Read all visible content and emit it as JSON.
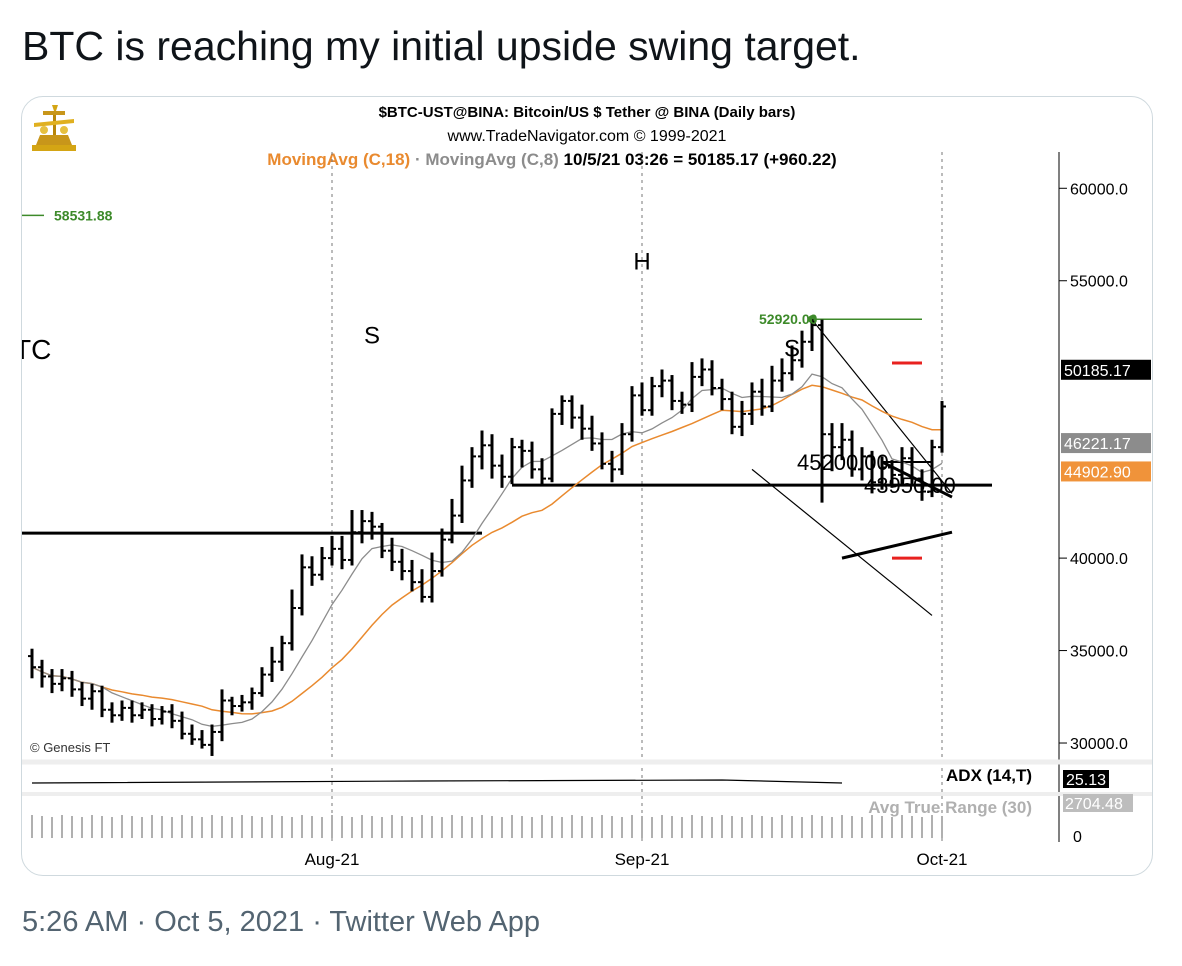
{
  "tweet": {
    "text": "BTC is reaching my initial upside swing target.",
    "time": "5:26 AM",
    "date": "Oct 5, 2021",
    "source": "Twitter Web App",
    "separator": "·"
  },
  "colors": {
    "ma18": "#e98a2f",
    "ma8": "#8c8c8c",
    "target_green": "#3d8a2a",
    "red_marker": "#e8211f",
    "price_box": "#000000",
    "ma18_box": "#f0933a",
    "ma8_box": "#8c8c8c"
  },
  "chart_data": {
    "type": "bar",
    "subtype": "ohlc",
    "title": "$BTC-UST@BINA:  Bitcoin/US $ Tether @ BINA  (Daily bars)",
    "subtitle": "www.TradeNavigator.com © 1999-2021",
    "legend": {
      "ma18": "MovingAvg (C,18)",
      "ma8": "MovingAvg (C,8)",
      "quote": "10/5/21 03:26 = 50185.17 (+960.22)"
    },
    "copyright": "© Genesis FT",
    "partial_label": "TC",
    "x_ticks": [
      "Aug-21",
      "Sep-21",
      "Oct-21"
    ],
    "x_tick_dates": [
      "2021-08-01",
      "2021-09-01",
      "2021-10-01"
    ],
    "y_ticks": [
      "60000.0",
      "55000.0",
      "40000.0",
      "35000.0",
      "30000.0"
    ],
    "y_tick_values": [
      60000,
      55000,
      40000,
      35000,
      30000
    ],
    "ylim": [
      28000,
      61800
    ],
    "xlim": [
      "2021-07-01",
      "2021-10-12"
    ],
    "price_labels": {
      "last": {
        "text": "50185.17",
        "value": 50185.17
      },
      "ma8": {
        "text": "46221.17",
        "value": 46221.17
      },
      "ma18": {
        "text": "44902.90",
        "value": 44902.9
      }
    },
    "annotations": [
      {
        "text": "58531.88",
        "value": 58531.88
      },
      {
        "text": "52920.00",
        "value": 52920.0
      },
      {
        "text": "45200.00",
        "value": 45200.0
      },
      {
        "text": "43950.00",
        "value": 43950.0
      },
      {
        "text": "H",
        "date": "2021-09-01",
        "value": 55600
      },
      {
        "text": "S",
        "date": "2021-08-05",
        "value": 51600
      },
      {
        "text": "S",
        "date": "2021-09-16",
        "value": 50900
      }
    ],
    "levels": [
      41350,
      43950,
      45200,
      52920,
      40000,
      50550
    ],
    "indicators": [
      {
        "name": "ADX (14,T)",
        "value": "25.13"
      },
      {
        "name": "Avg True Range (30)",
        "value": "2704.48",
        "zero": "0"
      }
    ],
    "series": {
      "ohlc": [
        [
          "2021-07-02",
          34700,
          34100,
          35100,
          33500
        ],
        [
          "2021-07-03",
          34100,
          33600,
          34500,
          33000
        ],
        [
          "2021-07-04",
          33600,
          33200,
          34000,
          32700
        ],
        [
          "2021-07-05",
          33200,
          33500,
          34000,
          32800
        ],
        [
          "2021-07-06",
          33500,
          32900,
          33900,
          32500
        ],
        [
          "2021-07-07",
          32900,
          32400,
          33300,
          32000
        ],
        [
          "2021-07-08",
          32400,
          32800,
          33200,
          31800
        ],
        [
          "2021-07-09",
          32800,
          31800,
          33100,
          31400
        ],
        [
          "2021-07-10",
          31800,
          31500,
          32200,
          31100
        ],
        [
          "2021-07-11",
          31500,
          31900,
          32300,
          31200
        ],
        [
          "2021-07-12",
          31900,
          31500,
          32300,
          31100
        ],
        [
          "2021-07-13",
          31500,
          31800,
          32200,
          31300
        ],
        [
          "2021-07-14",
          31800,
          31300,
          32100,
          30900
        ],
        [
          "2021-07-15",
          31300,
          31700,
          32000,
          31000
        ],
        [
          "2021-07-16",
          31700,
          31200,
          32100,
          30800
        ],
        [
          "2021-07-17",
          31200,
          30500,
          31700,
          30200
        ],
        [
          "2021-07-18",
          30500,
          30200,
          31000,
          29900
        ],
        [
          "2021-07-19",
          30200,
          29900,
          30700,
          29700
        ],
        [
          "2021-07-20",
          29900,
          30600,
          31000,
          29300
        ],
        [
          "2021-07-21",
          30600,
          32300,
          32900,
          30100
        ],
        [
          "2021-07-22",
          32300,
          32000,
          32500,
          31500
        ],
        [
          "2021-07-23",
          32000,
          32200,
          32600,
          31700
        ],
        [
          "2021-07-24",
          32200,
          32700,
          33000,
          31800
        ],
        [
          "2021-07-25",
          32700,
          33700,
          34100,
          32500
        ],
        [
          "2021-07-26",
          33700,
          34400,
          35200,
          33300
        ],
        [
          "2021-07-27",
          34400,
          35400,
          35800,
          33900
        ],
        [
          "2021-07-28",
          35400,
          37300,
          38300,
          35000
        ],
        [
          "2021-07-29",
          37300,
          39500,
          40200,
          36900
        ],
        [
          "2021-07-30",
          39500,
          39100,
          40100,
          38500
        ],
        [
          "2021-07-31",
          39100,
          40000,
          40600,
          38800
        ],
        [
          "2021-08-01",
          40000,
          40500,
          41200,
          39600
        ],
        [
          "2021-08-02",
          40500,
          39900,
          41200,
          39400
        ],
        [
          "2021-08-03",
          39900,
          41400,
          42600,
          39600
        ],
        [
          "2021-08-04",
          41400,
          42000,
          42600,
          40800
        ],
        [
          "2021-08-05",
          42000,
          41700,
          42500,
          41000
        ],
        [
          "2021-08-06",
          41700,
          40400,
          41900,
          40000
        ],
        [
          "2021-08-07",
          40400,
          39800,
          41100,
          39300
        ],
        [
          "2021-08-08",
          39800,
          39300,
          40500,
          38800
        ],
        [
          "2021-08-09",
          39300,
          38700,
          39900,
          38200
        ],
        [
          "2021-08-10",
          38700,
          37900,
          39400,
          37600
        ],
        [
          "2021-08-11",
          37900,
          39300,
          40300,
          37600
        ],
        [
          "2021-08-12",
          39300,
          41000,
          41600,
          39000
        ],
        [
          "2021-08-13",
          41000,
          42300,
          43200,
          40800
        ],
        [
          "2021-08-14",
          42300,
          44200,
          45000,
          41900
        ],
        [
          "2021-08-15",
          44200,
          45500,
          46000,
          43800
        ],
        [
          "2021-08-16",
          45500,
          46100,
          46900,
          44800
        ],
        [
          "2021-08-17",
          46100,
          45000,
          46700,
          44300
        ],
        [
          "2021-08-18",
          45000,
          44400,
          45600,
          43800
        ],
        [
          "2021-08-19",
          44400,
          46000,
          46500,
          44000
        ],
        [
          "2021-08-20",
          46000,
          45800,
          46400,
          44900
        ],
        [
          "2021-08-21",
          45800,
          44800,
          46300,
          44300
        ],
        [
          "2021-08-22",
          44800,
          44300,
          45400,
          43900
        ],
        [
          "2021-08-23",
          44300,
          47800,
          48100,
          44100
        ],
        [
          "2021-08-24",
          47800,
          48500,
          48800,
          47200
        ],
        [
          "2021-08-25",
          48500,
          47600,
          48800,
          47000
        ],
        [
          "2021-08-26",
          47600,
          47000,
          48300,
          46400
        ],
        [
          "2021-08-27",
          47000,
          46200,
          47700,
          45800
        ],
        [
          "2021-08-28",
          46200,
          45100,
          46800,
          44800
        ],
        [
          "2021-08-29",
          45100,
          44800,
          45800,
          44100
        ],
        [
          "2021-08-30",
          44800,
          46700,
          47300,
          44500
        ],
        [
          "2021-08-31",
          46700,
          48800,
          49300,
          46300
        ],
        [
          "2021-09-01",
          48800,
          48000,
          49500,
          47700
        ],
        [
          "2021-09-02",
          48000,
          49300,
          49800,
          47700
        ],
        [
          "2021-09-03",
          49300,
          49600,
          50200,
          48700
        ],
        [
          "2021-09-04",
          49600,
          48500,
          49900,
          48000
        ],
        [
          "2021-09-05",
          48500,
          48300,
          49000,
          47800
        ],
        [
          "2021-09-06",
          48300,
          49800,
          50600,
          47900
        ],
        [
          "2021-09-07",
          49800,
          50200,
          50800,
          49300
        ],
        [
          "2021-09-08",
          50200,
          49200,
          50700,
          48800
        ],
        [
          "2021-09-09",
          49200,
          48600,
          49700,
          48000
        ],
        [
          "2021-09-10",
          48600,
          47100,
          49000,
          46700
        ],
        [
          "2021-09-11",
          47100,
          47800,
          48500,
          46600
        ],
        [
          "2021-09-12",
          47800,
          49000,
          49500,
          47200
        ],
        [
          "2021-09-13",
          49000,
          48200,
          49700,
          47700
        ],
        [
          "2021-09-14",
          48200,
          49600,
          50400,
          47900
        ],
        [
          "2021-09-15",
          49600,
          50000,
          50800,
          49000
        ],
        [
          "2021-09-16",
          50000,
          50700,
          51500,
          49600
        ],
        [
          "2021-09-17",
          50700,
          51700,
          52300,
          50300
        ],
        [
          "2021-09-18",
          51700,
          52600,
          52920,
          51200
        ],
        [
          "2021-09-19",
          52600,
          46700,
          52900,
          43000
        ],
        [
          "2021-09-20",
          46700,
          46000,
          47300,
          44700
        ],
        [
          "2021-09-21",
          46000,
          46400,
          47300,
          45300
        ],
        [
          "2021-09-22",
          46400,
          44800,
          46900,
          44400
        ],
        [
          "2021-09-23",
          44800,
          45500,
          46000,
          44200
        ],
        [
          "2021-09-24",
          45500,
          44100,
          45800,
          43500
        ],
        [
          "2021-09-25",
          44100,
          44900,
          45500,
          43700
        ],
        [
          "2021-09-26",
          44900,
          44500,
          45300,
          43800
        ],
        [
          "2021-09-27",
          44500,
          45400,
          46000,
          44000
        ],
        [
          "2021-09-28",
          45400,
          44300,
          46000,
          43900
        ],
        [
          "2021-09-29",
          44300,
          43600,
          44800,
          43100
        ],
        [
          "2021-09-30",
          43600,
          46000,
          46400,
          43300
        ],
        [
          "2021-10-01",
          46000,
          48200,
          48500,
          45700
        ]
      ]
    }
  }
}
